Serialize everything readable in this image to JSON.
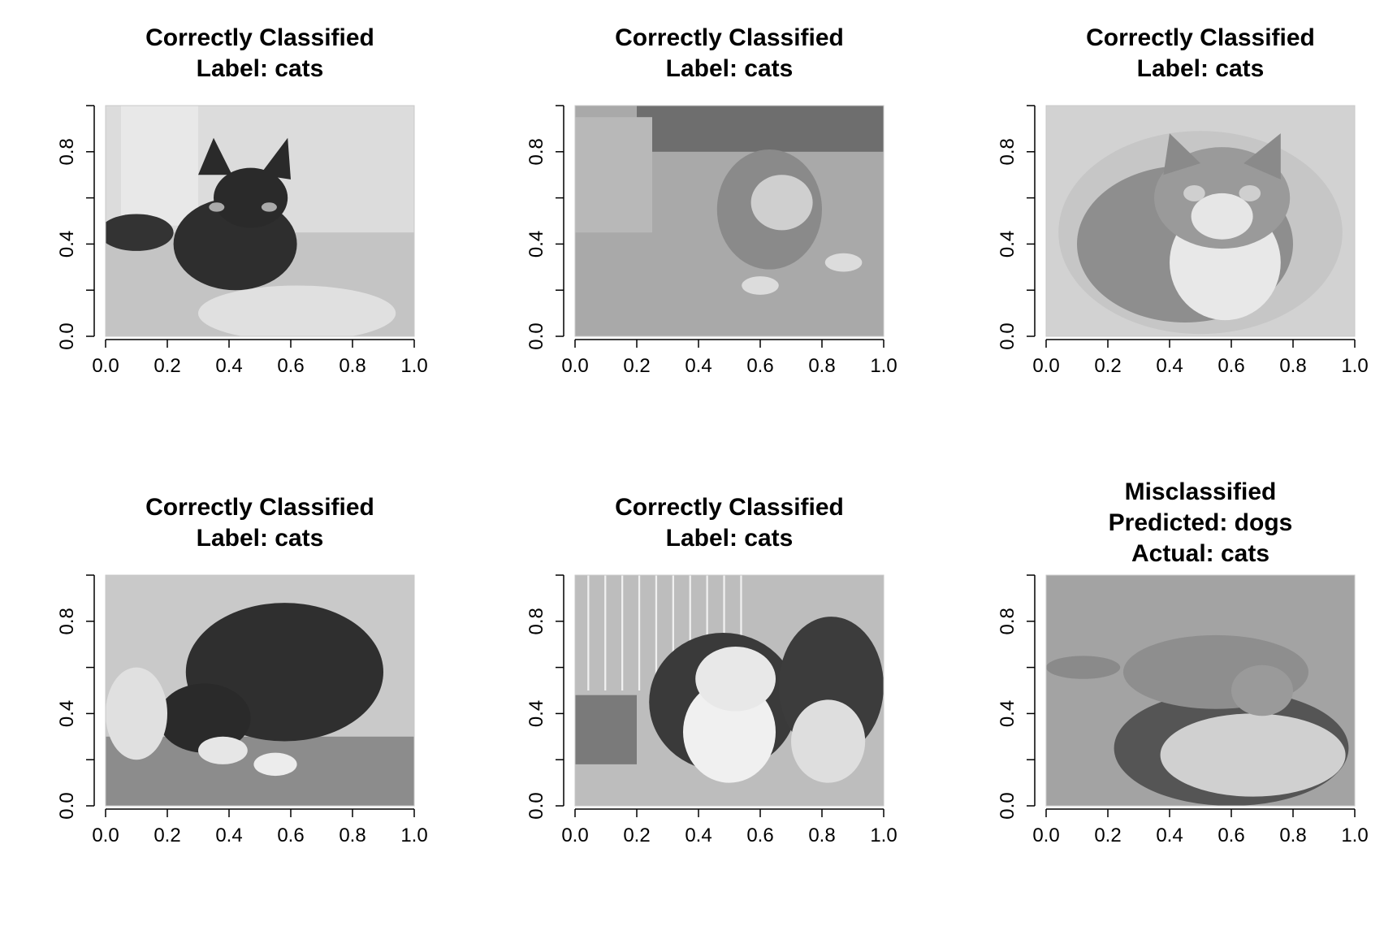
{
  "chart_data": [
    {
      "type": "image",
      "title_lines": [
        "Correctly Classified",
        "Label: cats"
      ],
      "xlim": [
        0,
        1
      ],
      "ylim": [
        0,
        1
      ],
      "x_ticks": [
        "0.0",
        "0.2",
        "0.4",
        "0.6",
        "0.8",
        "1.0"
      ],
      "y_ticks": [
        "0.0",
        "0.4",
        "0.8"
      ],
      "image_subject": "black cat lying on a towel",
      "image_tone": "dark"
    },
    {
      "type": "image",
      "title_lines": [
        "Correctly Classified",
        "Label: cats"
      ],
      "xlim": [
        0,
        1
      ],
      "ylim": [
        0,
        1
      ],
      "x_ticks": [
        "0.0",
        "0.2",
        "0.4",
        "0.6",
        "0.8",
        "1.0"
      ],
      "y_ticks": [
        "0.0",
        "0.4",
        "0.8"
      ],
      "image_subject": "grey and white kitten on a carpet",
      "image_tone": "mid"
    },
    {
      "type": "image",
      "title_lines": [
        "Correctly Classified",
        "Label: cats"
      ],
      "xlim": [
        0,
        1
      ],
      "ylim": [
        0,
        1
      ],
      "x_ticks": [
        "0.0",
        "0.2",
        "0.4",
        "0.6",
        "0.8",
        "1.0"
      ],
      "y_ticks": [
        "0.0",
        "0.4",
        "0.8"
      ],
      "image_subject": "tabby and white cat with vignette border",
      "image_tone": "light"
    },
    {
      "type": "image",
      "title_lines": [
        "Correctly Classified",
        "Label: cats"
      ],
      "xlim": [
        0,
        1
      ],
      "ylim": [
        0,
        1
      ],
      "x_ticks": [
        "0.0",
        "0.2",
        "0.4",
        "0.6",
        "0.8",
        "1.0"
      ],
      "y_ticks": [
        "0.0",
        "0.4",
        "0.8"
      ],
      "image_subject": "black and white cat crouching on a table",
      "image_tone": "dark"
    },
    {
      "type": "image",
      "title_lines": [
        "Correctly Classified",
        "Label: cats"
      ],
      "xlim": [
        0,
        1
      ],
      "ylim": [
        0,
        1
      ],
      "x_ticks": [
        "0.0",
        "0.2",
        "0.4",
        "0.6",
        "0.8",
        "1.0"
      ],
      "y_ticks": [
        "0.0",
        "0.4",
        "0.8"
      ],
      "image_subject": "two black and white cats in a cage",
      "image_tone": "mixed"
    },
    {
      "type": "image",
      "title_lines": [
        "Misclassified",
        "Predicted: dogs",
        "Actual: cats"
      ],
      "xlim": [
        0,
        1
      ],
      "ylim": [
        0,
        1
      ],
      "x_ticks": [
        "0.0",
        "0.2",
        "0.4",
        "0.6",
        "0.8",
        "1.0"
      ],
      "y_ticks": [
        "0.0",
        "0.4",
        "0.8"
      ],
      "image_subject": "tabby cat lying on a round scratching bed",
      "image_tone": "mid"
    }
  ],
  "colors": {
    "background": "#ffffff",
    "axis": "#000000",
    "image_frame": "#c8c8c8"
  }
}
